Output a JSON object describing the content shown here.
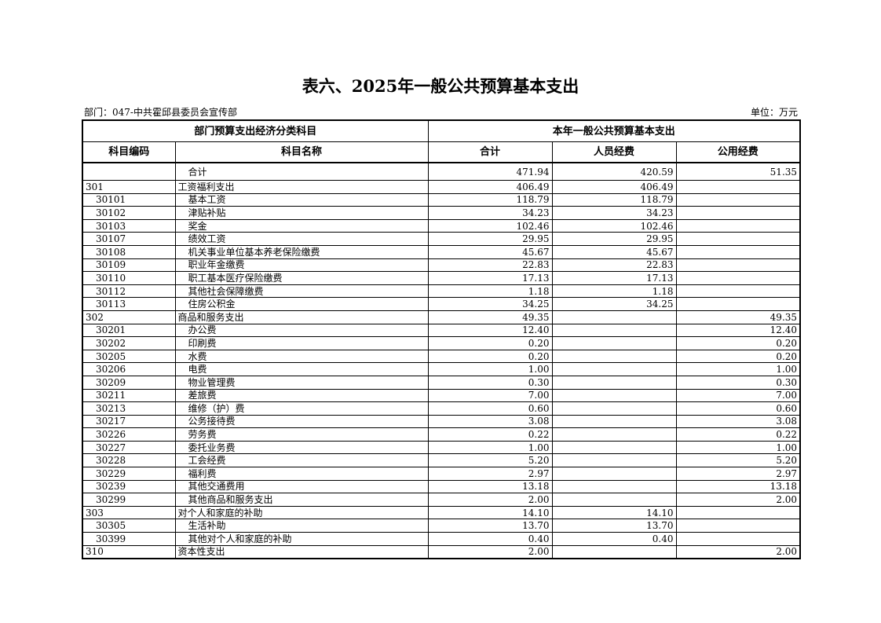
{
  "title": "表六、2025年一般公共预算基本支出",
  "department": "部门：047-中共霍邱县委员会宣传部",
  "unit": "单位：万元",
  "table": {
    "header_groups": [
      "部门预算支出经济分类科目",
      "本年一般公共预算基本支出"
    ],
    "columns": [
      "科目编码",
      "科目名称",
      "合计",
      "人员经费",
      "公用经费"
    ],
    "rows": [
      [
        null,
        "合计",
        "471.94",
        "420.59",
        "51.35"
      ],
      [
        "301",
        "工资福利支出",
        "406.49",
        "406.49",
        null
      ],
      [
        "30101",
        "基本工资",
        "118.79",
        "118.79",
        null
      ],
      [
        "30102",
        "津贴补贴",
        "34.23",
        "34.23",
        null
      ],
      [
        "30103",
        "奖金",
        "102.46",
        "102.46",
        null
      ],
      [
        "30107",
        "绩效工资",
        "29.95",
        "29.95",
        null
      ],
      [
        "30108",
        "机关事业单位基本养老保险缴费",
        "45.67",
        "45.67",
        null
      ],
      [
        "30109",
        "职业年金缴费",
        "22.83",
        "22.83",
        null
      ],
      [
        "30110",
        "职工基本医疗保险缴费",
        "17.13",
        "17.13",
        null
      ],
      [
        "30112",
        "其他社会保障缴费",
        "1.18",
        "1.18",
        null
      ],
      [
        "30113",
        "住房公积金",
        "34.25",
        "34.25",
        null
      ],
      [
        "302",
        "商品和服务支出",
        "49.35",
        null,
        "49.35"
      ],
      [
        "30201",
        "办公费",
        "12.40",
        null,
        "12.40"
      ],
      [
        "30202",
        "印刷费",
        "0.20",
        null,
        "0.20"
      ],
      [
        "30205",
        "水费",
        "0.20",
        null,
        "0.20"
      ],
      [
        "30206",
        "电费",
        "1.00",
        null,
        "1.00"
      ],
      [
        "30209",
        "物业管理费",
        "0.30",
        null,
        "0.30"
      ],
      [
        "30211",
        "差旅费",
        "7.00",
        null,
        "7.00"
      ],
      [
        "30213",
        "维修（护）费",
        "0.60",
        null,
        "0.60"
      ],
      [
        "30217",
        "公务接待费",
        "3.08",
        null,
        "3.08"
      ],
      [
        "30226",
        "劳务费",
        "0.22",
        null,
        "0.22"
      ],
      [
        "30227",
        "委托业务费",
        "1.00",
        null,
        "1.00"
      ],
      [
        "30228",
        "工会经费",
        "5.20",
        null,
        "5.20"
      ],
      [
        "30229",
        "福利费",
        "2.97",
        null,
        "2.97"
      ],
      [
        "30239",
        "其他交通费用",
        "13.18",
        null,
        "13.18"
      ],
      [
        "30299",
        "其他商品和服务支出",
        "2.00",
        null,
        "2.00"
      ],
      [
        "303",
        "对个人和家庭的补助",
        "14.10",
        "14.10",
        null
      ],
      [
        "30305",
        "生活补助",
        "13.70",
        "13.70",
        null
      ],
      [
        "30399",
        "其他对个人和家庭的补助",
        "0.40",
        "0.40",
        null
      ],
      [
        "310",
        "资本性支出",
        "2.00",
        null,
        "2.00"
      ]
    ]
  }
}
